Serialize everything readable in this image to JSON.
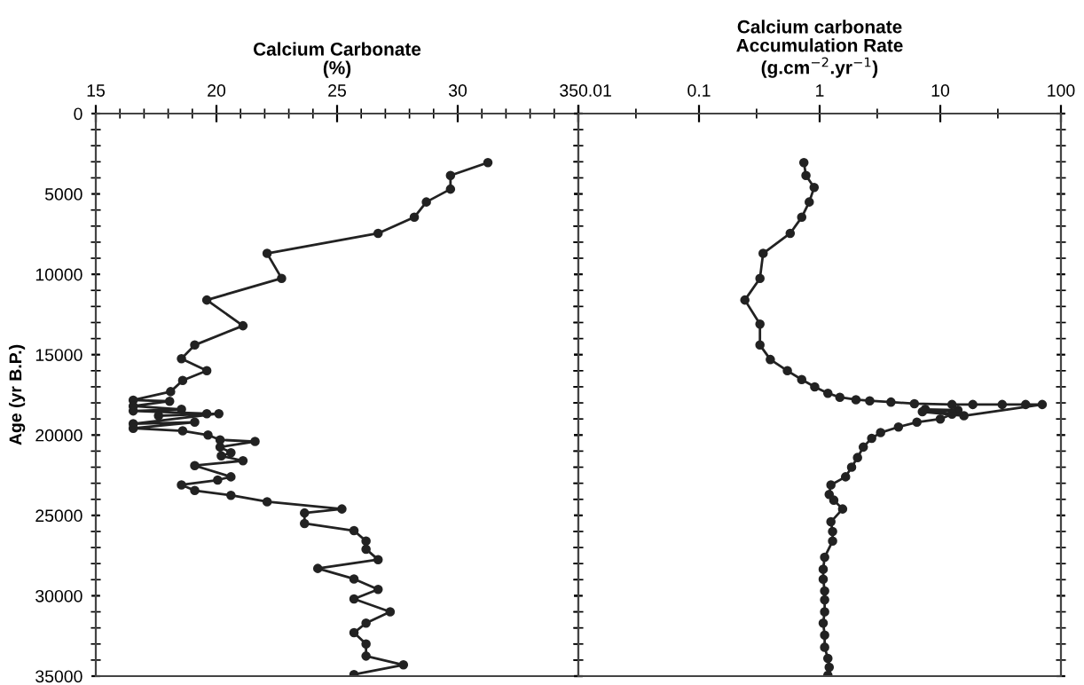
{
  "chart_data": [
    {
      "type": "line",
      "xlabel": "Calcium Carbonate\n(%)",
      "ylabel": "Age (yr B.P.)",
      "xlim": [
        15,
        35
      ],
      "xticks": [
        15,
        20,
        25,
        30,
        35
      ],
      "ylim": [
        35000,
        0
      ],
      "yticks": [
        0,
        5000,
        10000,
        15000,
        20000,
        25000,
        30000,
        35000
      ],
      "marker": "circle",
      "line_style": "solid",
      "grid": false,
      "series": [
        {
          "color": "#222222",
          "x": [
            31.25,
            29.7,
            29.7,
            28.7,
            28.2,
            26.7,
            22.1,
            22.7,
            19.6,
            21.1,
            19.1,
            18.55,
            19.6,
            18.6,
            18.1,
            16.55,
            18.06,
            16.55,
            18.55,
            16.55,
            19.6,
            17.6,
            20.1,
            16.55,
            19.1,
            16.55,
            18.6,
            19.65,
            20.15,
            21.6,
            20.15,
            20.6,
            20.2,
            21.1,
            19.1,
            20.6,
            20.05,
            18.55,
            19.1,
            20.6,
            22.1,
            25.2,
            23.65,
            23.65,
            25.7,
            26.2,
            26.2,
            26.7,
            24.2,
            25.7,
            26.7,
            25.7,
            27.2,
            26.2,
            25.7,
            26.2,
            26.2,
            27.75,
            25.7
          ],
          "values": [
            3050,
            3850,
            4700,
            5500,
            6450,
            7450,
            8700,
            10250,
            11600,
            13200,
            14400,
            15250,
            16000,
            16600,
            17300,
            17830,
            17900,
            18200,
            18400,
            18500,
            18670,
            18800,
            18670,
            19300,
            19200,
            19580,
            19740,
            20000,
            20300,
            20400,
            20750,
            21100,
            21300,
            21600,
            21900,
            22600,
            22800,
            23100,
            23450,
            23750,
            24150,
            24600,
            24850,
            25500,
            25950,
            26600,
            27100,
            27750,
            28300,
            28950,
            29600,
            30200,
            31000,
            31700,
            32300,
            33000,
            33750,
            34300,
            34900
          ]
        }
      ]
    },
    {
      "type": "line",
      "xlabel": "Calcium carbonate\nAccumulation Rate\n(g.cm$^{−2}$.yr$^{−1}$)",
      "log": "x",
      "xlim": [
        0.01,
        100
      ],
      "xticks": [
        0.01,
        0.1,
        1,
        10,
        100
      ],
      "ylim": [
        35000,
        0
      ],
      "yticks": [
        0,
        5000,
        10000,
        15000,
        20000,
        25000,
        30000,
        35000
      ],
      "tick_labels": "x",
      "marker": "circle",
      "line_style": "solid",
      "grid": false,
      "series": [
        {
          "color": "#222222",
          "x": [
            0.74,
            0.77,
            0.9,
            0.82,
            0.71,
            0.57,
            0.34,
            0.32,
            0.24,
            0.32,
            0.32,
            0.39,
            0.54,
            0.71,
            0.91,
            1.17,
            1.47,
            2.0,
            2.6,
            3.9,
            6.1,
            12.5,
            18.6,
            32.6,
            51,
            70,
            15.7,
            7.1,
            14.0,
            7.5,
            12.5,
            10.0,
            6.4,
            4.5,
            3.2,
            2.7,
            2.3,
            2.06,
            1.84,
            1.64,
            1.24,
            1.2,
            1.31,
            1.55,
            1.24,
            1.28,
            1.28,
            1.1,
            1.07,
            1.07,
            1.1,
            1.1,
            1.1,
            1.07,
            1.1,
            1.1,
            1.17,
            1.2,
            1.17
          ],
          "values": [
            3050,
            3850,
            4600,
            5500,
            6450,
            7450,
            8700,
            10250,
            11600,
            13100,
            14400,
            15300,
            16000,
            16550,
            17000,
            17400,
            17650,
            17800,
            17870,
            17950,
            18050,
            18100,
            18100,
            18100,
            18100,
            18100,
            18800,
            18550,
            18450,
            18400,
            18700,
            19000,
            19200,
            19500,
            19850,
            20200,
            20750,
            21400,
            22000,
            22600,
            23100,
            23700,
            24050,
            24600,
            25400,
            26000,
            26600,
            27600,
            28350,
            28970,
            29700,
            30250,
            31000,
            31700,
            32450,
            33200,
            33900,
            34450,
            34950
          ]
        }
      ]
    }
  ]
}
